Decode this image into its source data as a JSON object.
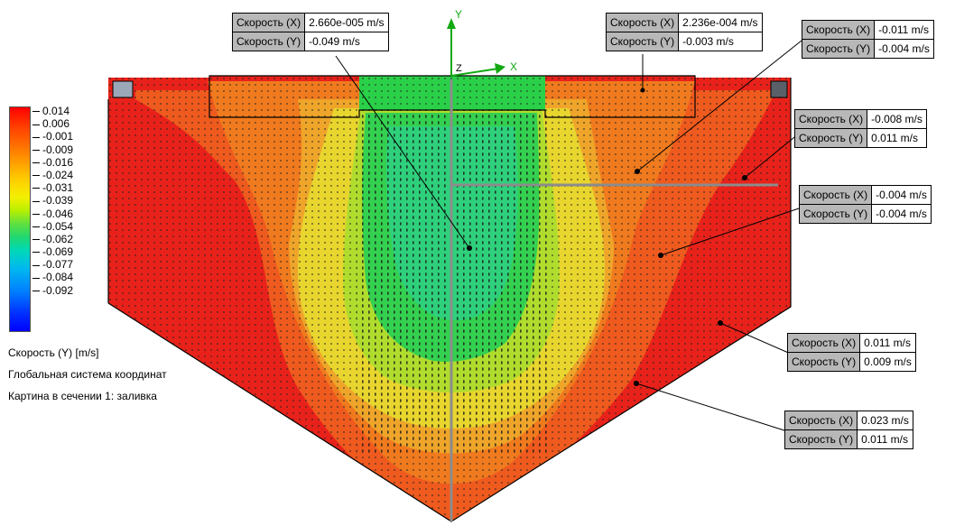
{
  "legend": {
    "ticks": [
      "0.014",
      "0.006",
      "-0.001",
      "-0.009",
      "-0.016",
      "-0.024",
      "-0.031",
      "-0.039",
      "-0.046",
      "-0.054",
      "-0.062",
      "-0.069",
      "-0.077",
      "-0.084",
      "-0.092"
    ],
    "title": "Скорость (Y) [m/s]",
    "coord_system": "Глобальная система координат",
    "section": "Картина в сечении 1: заливка"
  },
  "axes": {
    "y": "Y",
    "x": "X",
    "z": "Z"
  },
  "probes": [
    {
      "kx": "Скорость (X)",
      "vx": "2.660e-005 m/s",
      "ky": "Скорость (Y)",
      "vy": "-0.049 m/s"
    },
    {
      "kx": "Скорость (X)",
      "vx": "2.236e-004 m/s",
      "ky": "Скорость (Y)",
      "vy": "-0.003 m/s"
    },
    {
      "kx": "Скорость (X)",
      "vx": "-0.011 m/s",
      "ky": "Скорость (Y)",
      "vy": "-0.004 m/s"
    },
    {
      "kx": "Скорость (X)",
      "vx": "-0.008 m/s",
      "ky": "Скорость (Y)",
      "vy": "0.011 m/s"
    },
    {
      "kx": "Скорость (X)",
      "vx": "-0.004 m/s",
      "ky": "Скорость (Y)",
      "vy": "-0.004 m/s"
    },
    {
      "kx": "Скорость (X)",
      "vx": "0.011 m/s",
      "ky": "Скорость (Y)",
      "vy": "0.009 m/s"
    },
    {
      "kx": "Скорость (X)",
      "vx": "0.023 m/s",
      "ky": "Скорость (Y)",
      "vy": "0.011 m/s"
    }
  ],
  "colors": {
    "red": "#e8221a",
    "orange": "#f07a1e",
    "amber": "#eea52a",
    "yellow": "#e8d52e",
    "lime": "#b0dc2e",
    "green": "#34d050",
    "cyan": "#18c8a0",
    "axis": "#8c8c8c",
    "axis_green": "#12a812"
  }
}
